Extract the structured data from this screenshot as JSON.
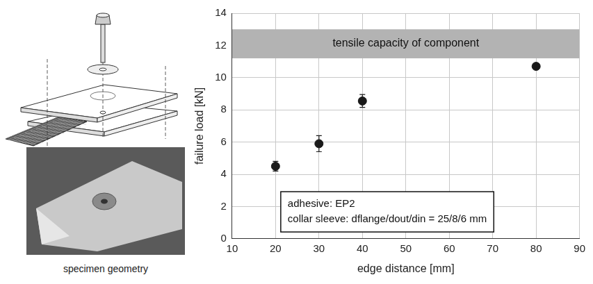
{
  "chart_data": {
    "type": "scatter",
    "x": [
      20,
      30,
      40,
      80
    ],
    "values": [
      4.5,
      5.9,
      8.55,
      10.7
    ],
    "errors": [
      0.3,
      0.5,
      0.4,
      0.1
    ],
    "color": "#1a1a1a",
    "marker": "circle",
    "x_label": "edge distance [mm]",
    "y_label": "failure load [kN]",
    "xlim": [
      10,
      90
    ],
    "xticks": [
      10,
      20,
      30,
      40,
      50,
      60,
      70,
      80,
      90
    ],
    "ylim": [
      0,
      14
    ],
    "yticks": [
      0,
      2,
      4,
      6,
      8,
      10,
      12,
      14
    ],
    "grid": true,
    "bands": [
      {
        "label": "tensile capacity of component",
        "range": [
          11.2,
          13
        ],
        "color": "#b3b3b3"
      }
    ],
    "annotations": [
      "adhesive: EP2",
      "collar sleeve: dflange/dout/din = 25/8/6 mm"
    ]
  },
  "specimen": {
    "caption": "specimen geometry"
  }
}
